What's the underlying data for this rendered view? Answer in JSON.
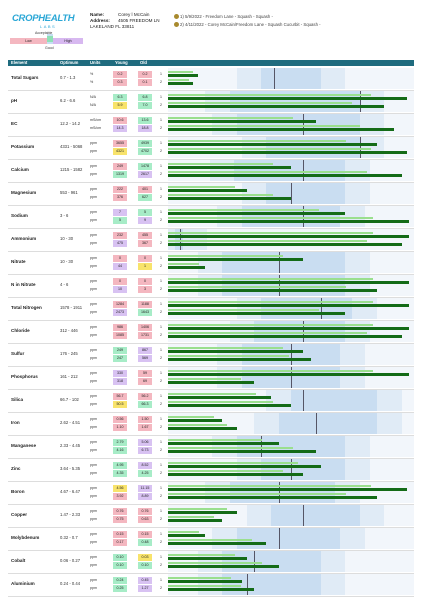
{
  "header": {
    "logo_main": "CROPHEALTH",
    "logo_sub": "LABS",
    "name_label": "Name:",
    "name": "Corey l McCain",
    "address_label": "Address:",
    "address1": "4505 FREEDOM LN",
    "address2": "LAKELAND FL 33811",
    "samples": [
      {
        "index": "1",
        "text": "5/9/2022 - Freedom Lane - Squash - Squash -"
      },
      {
        "index": "2",
        "text": "4/11/2022 - Corey McCain/Freedom Lane - Squash Cucurbit - Squash -"
      }
    ]
  },
  "scale": {
    "top_label": "Acceptable",
    "left_label": "Low",
    "right_label": "High",
    "bottom_label": "Good",
    "colors": {
      "low": "#f4b7c0",
      "acceptable": "#c5dff3",
      "good": "#8ee0b6",
      "high": "#d7b8f0"
    }
  },
  "columns": {
    "element": "Element",
    "optimum": "Optimum",
    "units": "Units",
    "young": "Young",
    "old": "Old"
  },
  "colors": {
    "red": "#f4b7c0",
    "yellow": "#f8e36b",
    "green": "#a7ecc7",
    "purple": "#d8c2f2",
    "band_outer": "#e0ebf6",
    "band_inner": "#c9ddf1",
    "bar_light": "#9adf8e",
    "bar_dark": "#146b17"
  },
  "rows": [
    {
      "name": "Total Sugars",
      "optimum": "0.7 - 1.3",
      "units": [
        "%",
        "%"
      ],
      "young": [
        "0.2",
        "0.3"
      ],
      "old": [
        "0.2",
        "0.1"
      ],
      "yc": [
        "red",
        "red"
      ],
      "oc": [
        "red",
        "red"
      ],
      "bars": [
        0.12,
        0.1
      ],
      "band": [
        0.38,
        0.62
      ],
      "mark": 0.43
    },
    {
      "name": "pH",
      "optimum": "6.2 - 6.6",
      "units": [
        "N/A",
        "N/A"
      ],
      "young": [
        "6.3",
        "5.9"
      ],
      "old": [
        "6.8",
        "7.0"
      ],
      "yc": [
        "green",
        "yellow"
      ],
      "oc": [
        "green",
        "green"
      ],
      "bars": [
        0.97,
        0.88
      ],
      "band": [
        0.25,
        0.78
      ],
      "mark": 0.78
    },
    {
      "name": "EC",
      "optimum": "12.2 - 14.2",
      "units": [
        "mS/cm",
        "mS/cm"
      ],
      "young": [
        "10.6",
        "14.3"
      ],
      "old": [
        "13.6",
        "18.8"
      ],
      "yc": [
        "red",
        "purple"
      ],
      "oc": [
        "green",
        "purple"
      ],
      "bars": [
        0.6,
        0.92
      ],
      "band": [
        0.28,
        0.78
      ],
      "mark": 0.55
    },
    {
      "name": "Potassium",
      "optimum": "4331 - 5068",
      "units": [
        "ppm",
        "ppm"
      ],
      "young": [
        "3655",
        "4321"
      ],
      "old": [
        "4939",
        "4702"
      ],
      "yc": [
        "red",
        "yellow"
      ],
      "oc": [
        "green",
        "green"
      ],
      "bars": [
        0.85,
        0.97
      ],
      "band": [
        0.4,
        0.78
      ],
      "mark": 0.78
    },
    {
      "name": "Calcium",
      "optimum": "1215 - 1582",
      "units": [
        "ppm",
        "ppm"
      ],
      "young": [
        "249",
        "1319"
      ],
      "old": [
        "1478",
        "2617"
      ],
      "yc": [
        "red",
        "green"
      ],
      "oc": [
        "green",
        "purple"
      ],
      "bars": [
        0.5,
        0.95
      ],
      "band": [
        0.27,
        0.72
      ],
      "mark": 0.55
    },
    {
      "name": "Magnesium",
      "optimum": "553 - 961",
      "units": [
        "ppm",
        "ppm"
      ],
      "young": [
        "222",
        "376"
      ],
      "old": [
        "401",
        "627"
      ],
      "yc": [
        "red",
        "red"
      ],
      "oc": [
        "red",
        "green"
      ],
      "bars": [
        0.32,
        0.5
      ],
      "band": [
        0.4,
        0.72
      ],
      "mark": 0.5
    },
    {
      "name": "Sodium",
      "optimum": "3 - 6",
      "units": [
        "ppm",
        "ppm"
      ],
      "young": [
        "7",
        "5"
      ],
      "old": [
        "5",
        "9"
      ],
      "yc": [
        "purple",
        "green"
      ],
      "oc": [
        "green",
        "purple"
      ],
      "bars": [
        0.72,
        0.98
      ],
      "band": [
        0.3,
        0.7
      ],
      "mark": 0.55
    },
    {
      "name": "Ammonium",
      "optimum": "10 - 30",
      "units": [
        "ppm",
        "ppm"
      ],
      "young": [
        "232",
        "475"
      ],
      "old": [
        "455",
        "367"
      ],
      "yc": [
        "red",
        "purple"
      ],
      "oc": [
        "red",
        "red"
      ],
      "bars": [
        0.98,
        0.95
      ],
      "band": [
        0.03,
        0.06
      ],
      "mark": 0.05
    },
    {
      "name": "Nitrate",
      "optimum": "10 - 30",
      "units": [
        "ppm",
        "ppm"
      ],
      "young": [
        "0",
        "44"
      ],
      "old": [
        "0",
        "1"
      ],
      "yc": [
        "red",
        "purple"
      ],
      "oc": [
        "red",
        "yellow"
      ],
      "bars": [
        0.55,
        0.15
      ],
      "band": [
        0.22,
        0.72
      ],
      "mark": 0.45
    },
    {
      "name": "N in Nitrate",
      "optimum": "4 - 6",
      "units": [
        "ppm",
        "ppm"
      ],
      "young": [
        "0",
        "10"
      ],
      "old": [
        "0",
        "3"
      ],
      "yc": [
        "red",
        "purple"
      ],
      "oc": [
        "red",
        "red"
      ],
      "bars": [
        0.98,
        0.85
      ],
      "band": [
        0.22,
        0.72
      ],
      "mark": 0.45
    },
    {
      "name": "Total Nitrogen",
      "optimum": "1578 - 1911",
      "units": [
        "ppm",
        "ppm"
      ],
      "young": [
        "1284",
        "2473"
      ],
      "old": [
        "1188",
        "1643"
      ],
      "yc": [
        "red",
        "purple"
      ],
      "oc": [
        "red",
        "green"
      ],
      "bars": [
        0.98,
        0.72
      ],
      "band": [
        0.38,
        0.75
      ],
      "mark": 0.62
    },
    {
      "name": "Chloride",
      "optimum": "312 - 446",
      "units": [
        "ppm",
        "ppm"
      ],
      "young": [
        "986",
        "1085"
      ],
      "old": [
        "1406",
        "1731"
      ],
      "yc": [
        "red",
        "red"
      ],
      "oc": [
        "red",
        "red"
      ],
      "bars": [
        0.98,
        0.95
      ],
      "band": [
        0.35,
        0.72
      ],
      "mark": 0.55
    },
    {
      "name": "Sulfur",
      "optimum": "176 - 245",
      "units": [
        "ppm",
        "ppm"
      ],
      "young": [
        "249",
        "247"
      ],
      "old": [
        "867",
        "569"
      ],
      "yc": [
        "green",
        "green"
      ],
      "oc": [
        "purple",
        "purple"
      ],
      "bars": [
        0.55,
        0.58
      ],
      "band": [
        0.3,
        0.7
      ],
      "mark": 0.5
    },
    {
      "name": "Phosphorus",
      "optimum": "161 - 212",
      "units": [
        "ppm",
        "ppm"
      ],
      "young": [
        "330",
        "318"
      ],
      "old": [
        "59",
        "69"
      ],
      "yc": [
        "purple",
        "purple"
      ],
      "oc": [
        "red",
        "red"
      ],
      "bars": [
        0.98,
        0.35
      ],
      "band": [
        0.3,
        0.7
      ],
      "mark": 0.5
    },
    {
      "name": "Silica",
      "optimum": "66.7 - 102",
      "units": [
        "ppm",
        "ppm"
      ],
      "young": [
        "56.7",
        "50.5"
      ],
      "old": [
        "56.2",
        "66.3"
      ],
      "yc": [
        "red",
        "yellow"
      ],
      "oc": [
        "red",
        "green"
      ],
      "bars": [
        0.42,
        0.5
      ],
      "band": [
        0.5,
        0.85
      ],
      "mark": 0.55
    },
    {
      "name": "Iron",
      "optimum": "2.62 - 4.51",
      "units": [
        "ppm",
        "ppm"
      ],
      "young": [
        "0.56",
        "1.10"
      ],
      "old": [
        "1.50",
        "1.67"
      ],
      "yc": [
        "red",
        "red"
      ],
      "oc": [
        "red",
        "red"
      ],
      "bars": [
        0.22,
        0.28
      ],
      "band": [
        0.45,
        0.85
      ],
      "mark": 0.6
    },
    {
      "name": "Manganese",
      "optimum": "2.33 - 4.45",
      "units": [
        "ppm",
        "ppm"
      ],
      "young": [
        "2.79",
        "4.16"
      ],
      "old": [
        "5.06",
        "6.73"
      ],
      "yc": [
        "green",
        "green"
      ],
      "oc": [
        "purple",
        "purple"
      ],
      "bars": [
        0.45,
        0.6
      ],
      "band": [
        0.28,
        0.72
      ],
      "mark": 0.38
    },
    {
      "name": "Zinc",
      "optimum": "3.64 - 5.35",
      "units": [
        "ppm",
        "ppm"
      ],
      "young": [
        "4.95",
        "4.35"
      ],
      "old": [
        "8.52",
        "4.25"
      ],
      "yc": [
        "green",
        "green"
      ],
      "oc": [
        "purple",
        "green"
      ],
      "bars": [
        0.62,
        0.55
      ],
      "band": [
        0.38,
        0.72
      ],
      "mark": 0.5
    },
    {
      "name": "Boron",
      "optimum": "4.67 - 6.47",
      "units": [
        "ppm",
        "ppm"
      ],
      "young": [
        "4.56",
        "3.92"
      ],
      "old": [
        "11.15",
        "8.89"
      ],
      "yc": [
        "yellow",
        "red"
      ],
      "oc": [
        "purple",
        "purple"
      ],
      "bars": [
        0.97,
        0.85
      ],
      "band": [
        0.25,
        0.68
      ],
      "mark": 0.45
    },
    {
      "name": "Copper",
      "optimum": "1.47 - 2.33",
      "units": [
        "ppm",
        "ppm"
      ],
      "young": [
        "0.76",
        "0.75"
      ],
      "old": [
        "0.76",
        "0.63"
      ],
      "yc": [
        "red",
        "red"
      ],
      "oc": [
        "red",
        "red"
      ],
      "bars": [
        0.28,
        0.22
      ],
      "band": [
        0.42,
        0.78
      ],
      "mark": 0.55
    },
    {
      "name": "Molybdenum",
      "optimum": "0.32 - 0.7",
      "units": [
        "ppm",
        "ppm"
      ],
      "young": [
        "0.15",
        "0.17"
      ],
      "old": [
        "0.15",
        "0.48"
      ],
      "yc": [
        "red",
        "red"
      ],
      "oc": [
        "red",
        "green"
      ],
      "bars": [
        0.15,
        0.4
      ],
      "band": [
        0.28,
        0.7
      ],
      "mark": 0.45
    },
    {
      "name": "Cobalt",
      "optimum": "0.06 - 0.27",
      "units": [
        "ppm",
        "ppm"
      ],
      "young": [
        "0.10",
        "0.10"
      ],
      "old": [
        "0.03",
        "0.10"
      ],
      "yc": [
        "green",
        "green"
      ],
      "oc": [
        "yellow",
        "green"
      ],
      "bars": [
        0.32,
        0.45
      ],
      "band": [
        0.22,
        0.62
      ],
      "mark": 0.35
    },
    {
      "name": "Aluminium",
      "optimum": "0.24 - 0.44",
      "units": [
        "ppm",
        "ppm"
      ],
      "young": [
        "0.24",
        "0.25"
      ],
      "old": [
        "0.45",
        "1.27"
      ],
      "yc": [
        "green",
        "green"
      ],
      "oc": [
        "purple",
        "purple"
      ],
      "bars": [
        0.3,
        0.35
      ],
      "band": [
        0.22,
        0.62
      ],
      "mark": 0.32
    }
  ]
}
